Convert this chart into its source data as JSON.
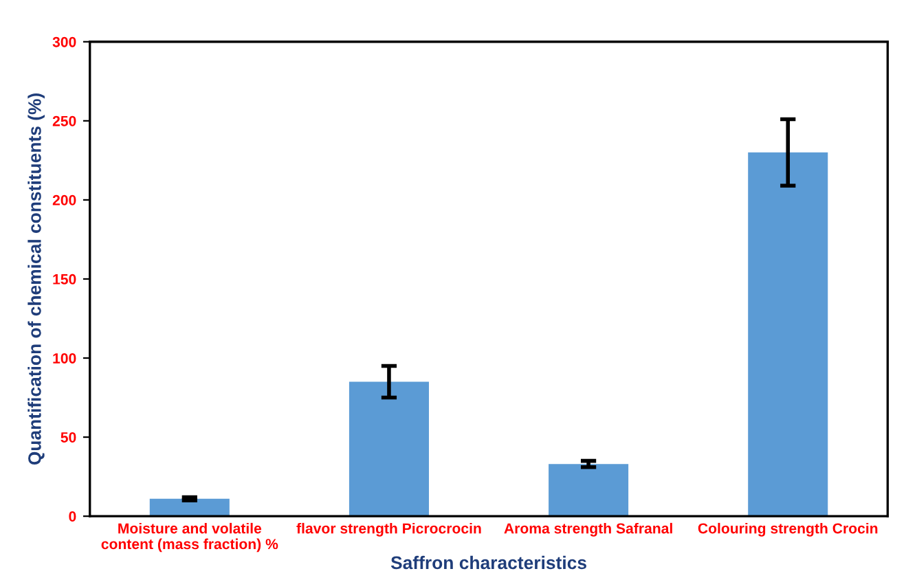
{
  "chart_data": {
    "type": "bar",
    "xlabel": "Saffron characteristics",
    "ylabel": "Quantification of chemical constituents (%)",
    "categories": [
      "Moisture and volatile\ncontent (mass fraction) %",
      "flavor strength Picrocrocin",
      "Aroma strength Safranal",
      "Colouring strength Crocin"
    ],
    "values": [
      11,
      85,
      33,
      230
    ],
    "errors": [
      1,
      10,
      2,
      21
    ],
    "color": "#5b9bd5",
    "ylim": [
      0,
      300
    ],
    "yticks": [
      0,
      50,
      100,
      150,
      200,
      250,
      300
    ],
    "grid": false,
    "legend": false
  }
}
